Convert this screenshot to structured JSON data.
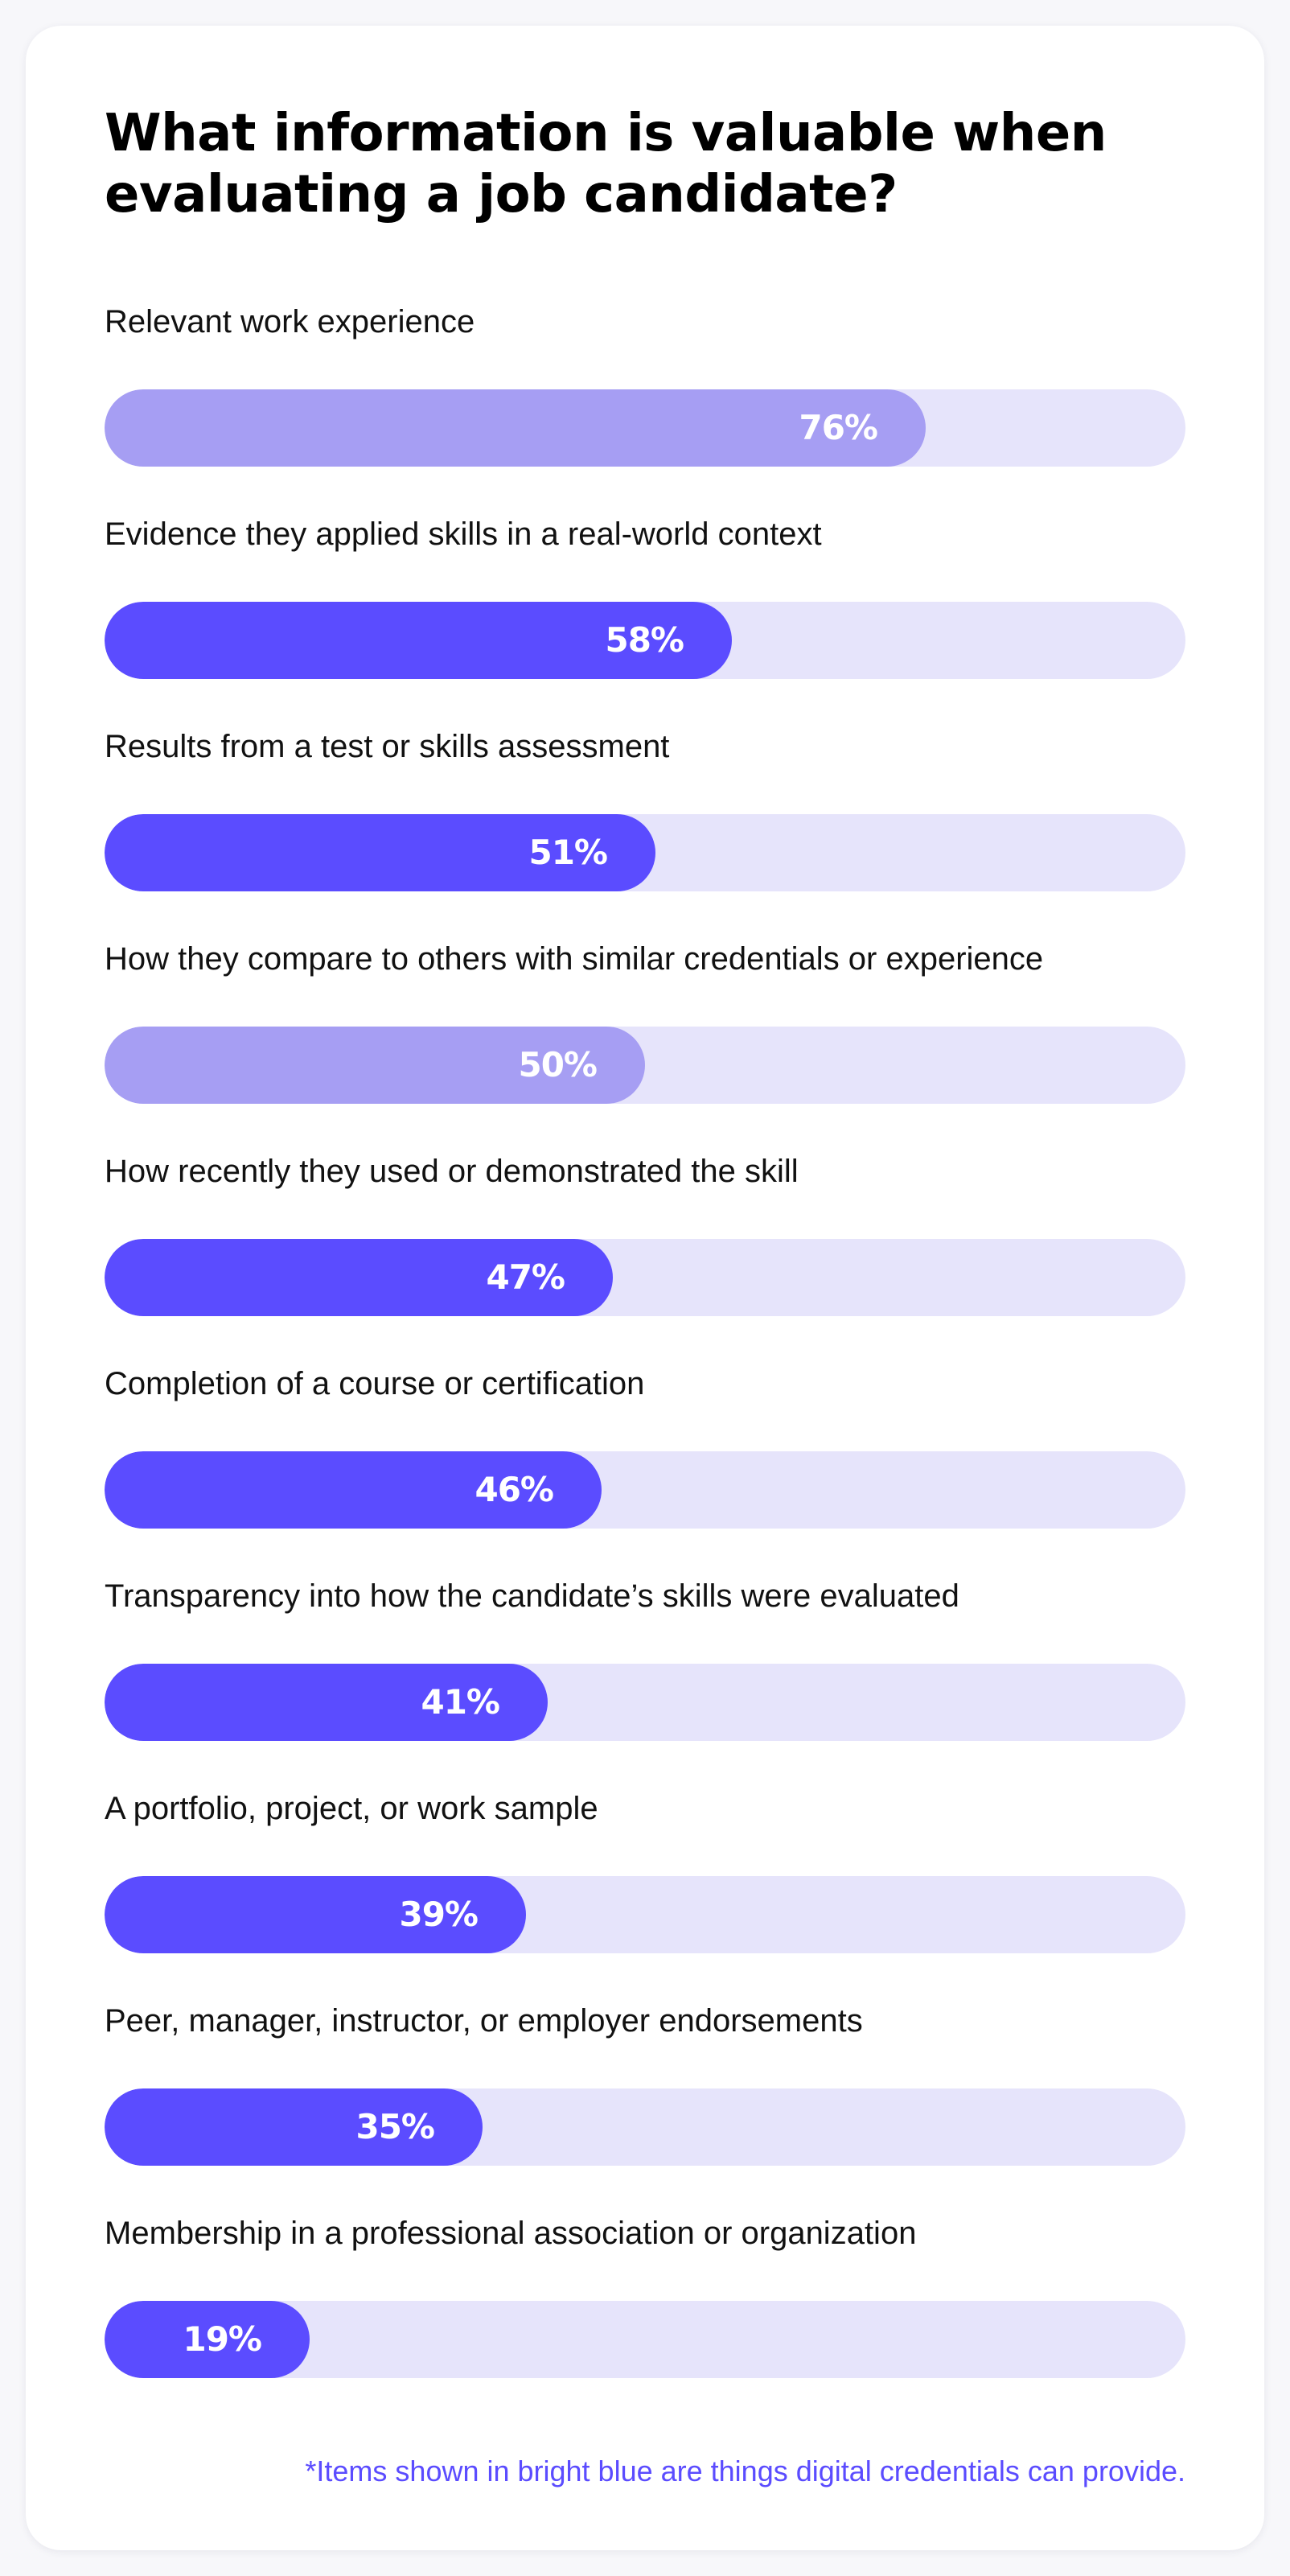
{
  "chart_data": {
    "type": "bar",
    "orientation": "horizontal",
    "title": "What information is valuable when evaluating a job candidate?",
    "unit": "%",
    "xlim": [
      0,
      100
    ],
    "categories": [
      "Relevant work experience",
      "Evidence they applied skills in a real-world context",
      "Results from a test or skills assessment",
      "How they compare to others with similar credentials or experience",
      "How recently they used or demonstrated the skill",
      "Completion of a course or certification",
      "Transparency into how the candidate’s skills were evaluated",
      "A portfolio, project, or work sample",
      "Peer, manager, instructor, or employer endorsements",
      "Membership in a professional association or organization"
    ],
    "values": [
      76,
      58,
      51,
      50,
      47,
      46,
      41,
      39,
      35,
      19
    ],
    "labels": [
      "76%",
      "58%",
      "51%",
      "50%",
      "47%",
      "46%",
      "41%",
      "39%",
      "35%",
      "19%"
    ],
    "highlighted": [
      false,
      true,
      true,
      false,
      true,
      true,
      true,
      true,
      true,
      true
    ],
    "colors": {
      "highlighted": "#5b4cff",
      "muted": "#a69ef3",
      "track": "#e6e4fb"
    },
    "footnote": "*Items shown in bright blue are things digital credentials can provide."
  }
}
